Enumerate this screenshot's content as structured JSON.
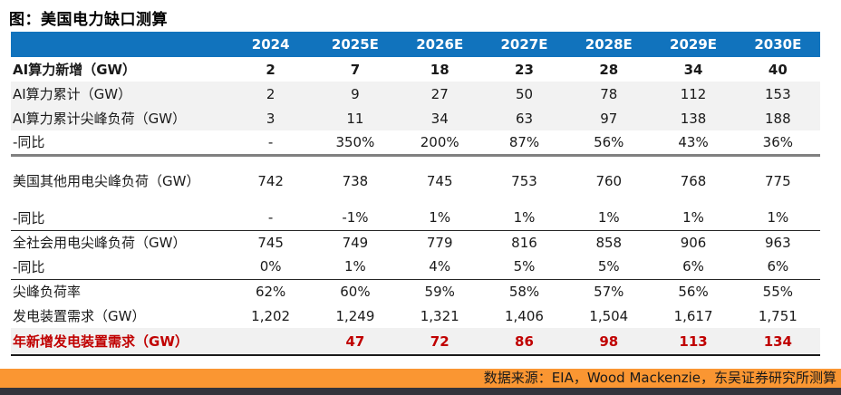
{
  "title": "图：美国电力缺口测算",
  "colors": {
    "header_bg": "#1173BD",
    "header_text": "#FFFFFF",
    "shaded_row_bg": "#F2F2F2",
    "highlight_row_bg": "#F1F1F1",
    "highlight_text": "#C00000",
    "source_bar_bg": "#FA9632",
    "bottom_bar_bg": "#33333B"
  },
  "chart_data": {
    "type": "table",
    "title": "图：美国电力缺口测算",
    "columns": [
      "2024",
      "2025E",
      "2026E",
      "2027E",
      "2028E",
      "2029E",
      "2030E"
    ],
    "rows": [
      {
        "label": "AI算力新增（GW）",
        "values": [
          "2",
          "7",
          "18",
          "23",
          "28",
          "34",
          "40"
        ],
        "style": "bold"
      },
      {
        "label": "AI算力累计（GW）",
        "values": [
          "2",
          "9",
          "27",
          "50",
          "78",
          "112",
          "153"
        ],
        "style": "shaded"
      },
      {
        "label": "AI算力累计尖峰负荷（GW）",
        "values": [
          "3",
          "11",
          "34",
          "63",
          "97",
          "138",
          "188"
        ],
        "style": "shaded"
      },
      {
        "label": "-同比",
        "values": [
          "-",
          "350%",
          "200%",
          "87%",
          "56%",
          "43%",
          "36%"
        ],
        "style": "sep-thick"
      },
      {
        "label": "美国其他用电尖峰负荷（GW）",
        "values": [
          "742",
          "738",
          "745",
          "753",
          "760",
          "768",
          "775"
        ],
        "style": "tall"
      },
      {
        "label": "-同比",
        "values": [
          "-",
          "-1%",
          "1%",
          "1%",
          "1%",
          "1%",
          "1%"
        ],
        "style": "sep-thin"
      },
      {
        "label": "全社会用电尖峰负荷（GW）",
        "values": [
          "745",
          "749",
          "779",
          "816",
          "858",
          "906",
          "963"
        ],
        "style": ""
      },
      {
        "label": "-同比",
        "values": [
          "0%",
          "1%",
          "4%",
          "5%",
          "5%",
          "6%",
          "6%"
        ],
        "style": "sep-thin"
      },
      {
        "label": "尖峰负荷率",
        "values": [
          "62%",
          "60%",
          "59%",
          "58%",
          "57%",
          "56%",
          "55%"
        ],
        "style": ""
      },
      {
        "label": "发电装置需求（GW）",
        "values": [
          "1,202",
          "1,249",
          "1,321",
          "1,406",
          "1,504",
          "1,617",
          "1,751"
        ],
        "style": ""
      },
      {
        "label": "年新增发电装置需求（GW）",
        "values": [
          "",
          "47",
          "72",
          "86",
          "98",
          "113",
          "134"
        ],
        "style": "red"
      }
    ]
  },
  "footer": {
    "source": "数据来源：EIA，Wood Mackenzie，东吴证券研究所测算"
  }
}
